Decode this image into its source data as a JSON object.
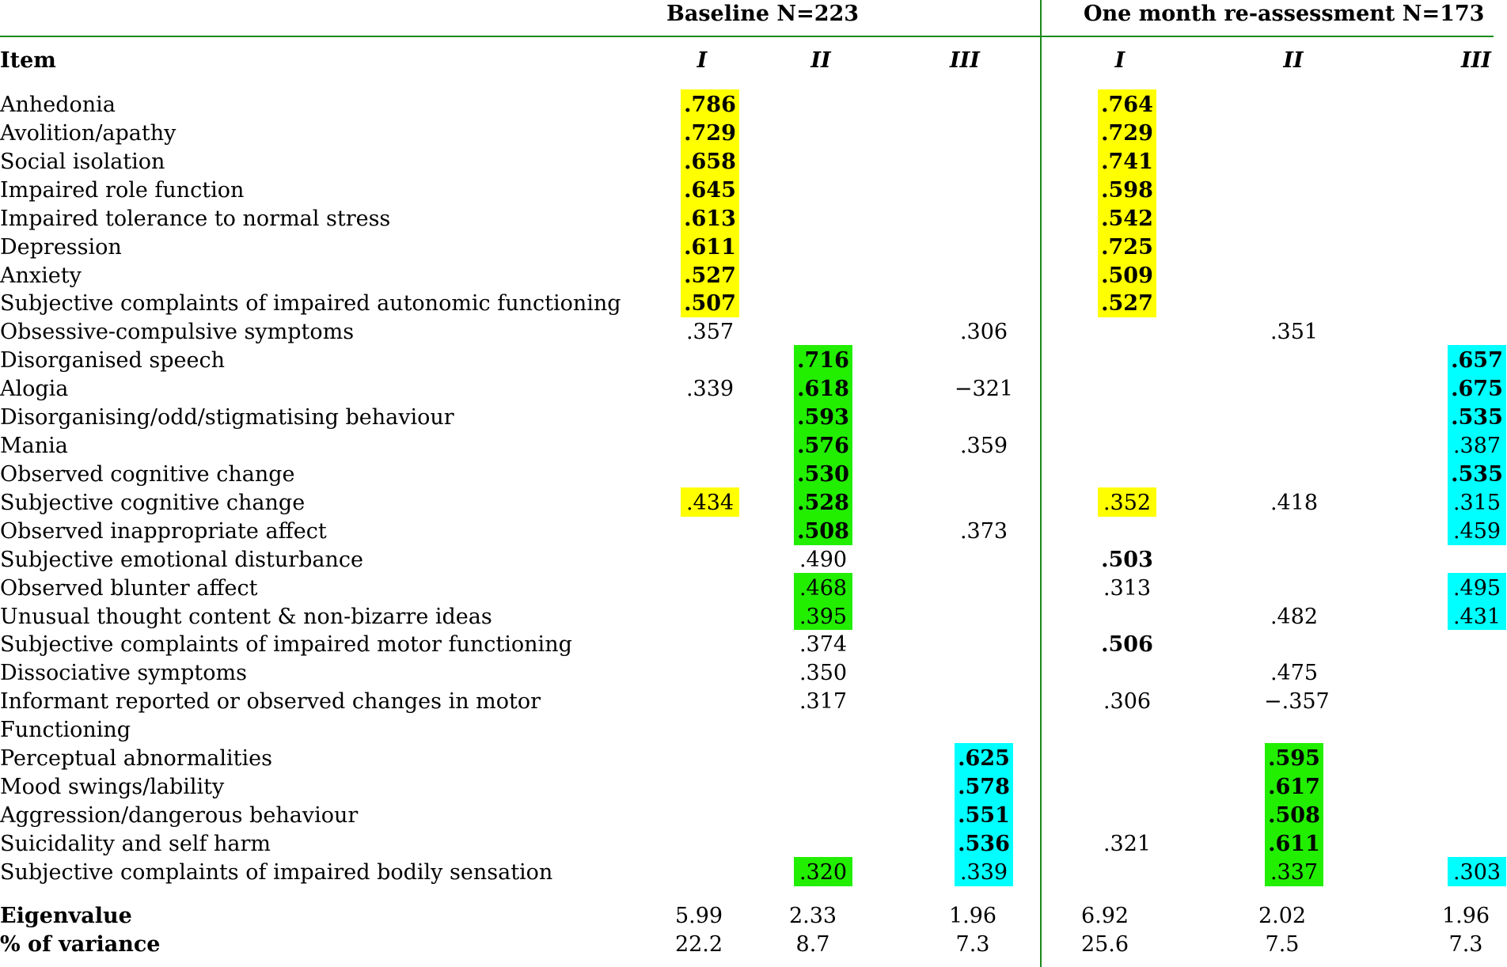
{
  "colors": {
    "factor_I": "#ffff00",
    "factor_II": "#22ee00",
    "factor_III": "#00ffff",
    "rule": "#1a8a1a"
  },
  "header": {
    "baseline_title": "Baseline N=223",
    "followup_title": "One month re-assessment N=173",
    "item_label": "Item",
    "factors": [
      "I",
      "II",
      "III"
    ]
  },
  "rows": [
    {
      "item": "Anhedonia",
      "baseline": [
        ".786",
        "",
        ""
      ],
      "followup": [
        ".764",
        "",
        ""
      ]
    },
    {
      "item": "Avolition/apathy",
      "baseline": [
        ".729",
        "",
        ""
      ],
      "followup": [
        ".729",
        "",
        ""
      ]
    },
    {
      "item": "Social isolation",
      "baseline": [
        ".658",
        "",
        ""
      ],
      "followup": [
        ".741",
        "",
        ""
      ]
    },
    {
      "item": "Impaired role function",
      "baseline": [
        ".645",
        "",
        ""
      ],
      "followup": [
        ".598",
        "",
        ""
      ]
    },
    {
      "item": "Impaired tolerance to normal stress",
      "baseline": [
        ".613",
        "",
        ""
      ],
      "followup": [
        ".542",
        "",
        ""
      ]
    },
    {
      "item": "Depression",
      "baseline": [
        ".611",
        "",
        ""
      ],
      "followup": [
        ".725",
        "",
        ""
      ]
    },
    {
      "item": "Anxiety",
      "baseline": [
        ".527",
        "",
        ""
      ],
      "followup": [
        ".509",
        "",
        ""
      ]
    },
    {
      "item": "Subjective complaints of impaired autonomic functioning",
      "baseline": [
        ".507",
        "",
        ""
      ],
      "followup": [
        ".527",
        "",
        ""
      ]
    },
    {
      "item": "Obsessive-compulsive symptoms",
      "baseline": [
        ".357",
        "",
        ".306"
      ],
      "followup": [
        "",
        ".351",
        ""
      ]
    },
    {
      "item": "Disorganised speech",
      "baseline": [
        "",
        ".716",
        ""
      ],
      "followup": [
        "",
        "",
        ".657"
      ]
    },
    {
      "item": "Alogia",
      "baseline": [
        ".339",
        ".618",
        "−321"
      ],
      "followup": [
        "",
        "",
        ".675"
      ]
    },
    {
      "item": "Disorganising/odd/stigmatising behaviour",
      "baseline": [
        "",
        ".593",
        ""
      ],
      "followup": [
        "",
        "",
        ".535"
      ]
    },
    {
      "item": "Mania",
      "baseline": [
        "",
        ".576",
        ".359"
      ],
      "followup": [
        "",
        "",
        ".387"
      ]
    },
    {
      "item": "Observed cognitive change",
      "baseline": [
        "",
        ".530",
        ""
      ],
      "followup": [
        "",
        "",
        ".535"
      ]
    },
    {
      "item": "Subjective cognitive change",
      "baseline": [
        ".434",
        ".528",
        ""
      ],
      "followup": [
        ".352",
        ".418",
        ".315"
      ]
    },
    {
      "item": "Observed inappropriate affect",
      "baseline": [
        "",
        ".508",
        ".373"
      ],
      "followup": [
        "",
        "",
        ".459"
      ]
    },
    {
      "item": "Subjective emotional disturbance",
      "baseline": [
        "",
        ".490",
        ""
      ],
      "followup": [
        ".503",
        "",
        ""
      ]
    },
    {
      "item": "Observed blunter affect",
      "baseline": [
        "",
        ".468",
        ""
      ],
      "followup": [
        ".313",
        "",
        ".495"
      ]
    },
    {
      "item": "Unusual thought content & non-bizarre ideas",
      "baseline": [
        "",
        ".395",
        ""
      ],
      "followup": [
        "",
        ".482",
        ".431"
      ]
    },
    {
      "item": "Subjective complaints of impaired motor functioning",
      "baseline": [
        "",
        ".374",
        ""
      ],
      "followup": [
        ".506",
        "",
        ""
      ]
    },
    {
      "item": "Dissociative symptoms",
      "baseline": [
        "",
        ".350",
        ""
      ],
      "followup": [
        "",
        ".475",
        ""
      ]
    },
    {
      "item": "Informant reported or observed changes in motor",
      "baseline": [
        "",
        ".317",
        ""
      ],
      "followup": [
        ".306",
        "−.357",
        ""
      ]
    },
    {
      "item": "Functioning",
      "baseline": [
        "",
        "",
        ""
      ],
      "followup": [
        "",
        "",
        ""
      ]
    },
    {
      "item": "Perceptual abnormalities",
      "baseline": [
        "",
        "",
        ".625"
      ],
      "followup": [
        "",
        ".595",
        ""
      ]
    },
    {
      "item": "Mood swings/lability",
      "baseline": [
        "",
        "",
        ".578"
      ],
      "followup": [
        "",
        ".617",
        ""
      ]
    },
    {
      "item": "Aggression/dangerous behaviour",
      "baseline": [
        "",
        "",
        ".551"
      ],
      "followup": [
        "",
        ".508",
        ""
      ]
    },
    {
      "item": "Suicidality and self harm",
      "baseline": [
        "",
        "",
        ".536"
      ],
      "followup": [
        ".321",
        ".611",
        ""
      ]
    },
    {
      "item": "Subjective complaints of impaired bodily sensation",
      "baseline": [
        "",
        ".320",
        ".339"
      ],
      "followup": [
        "",
        ".337",
        ".303"
      ]
    }
  ],
  "footer": [
    {
      "label": "Eigenvalue",
      "baseline": [
        "5.99",
        "2.33",
        "1.96"
      ],
      "followup": [
        "6.92",
        "2.02",
        "1.96"
      ]
    },
    {
      "label": "% of variance",
      "baseline": [
        "22.2",
        "8.7",
        "7.3"
      ],
      "followup": [
        "25.6",
        "7.5",
        "7.3"
      ]
    }
  ]
}
